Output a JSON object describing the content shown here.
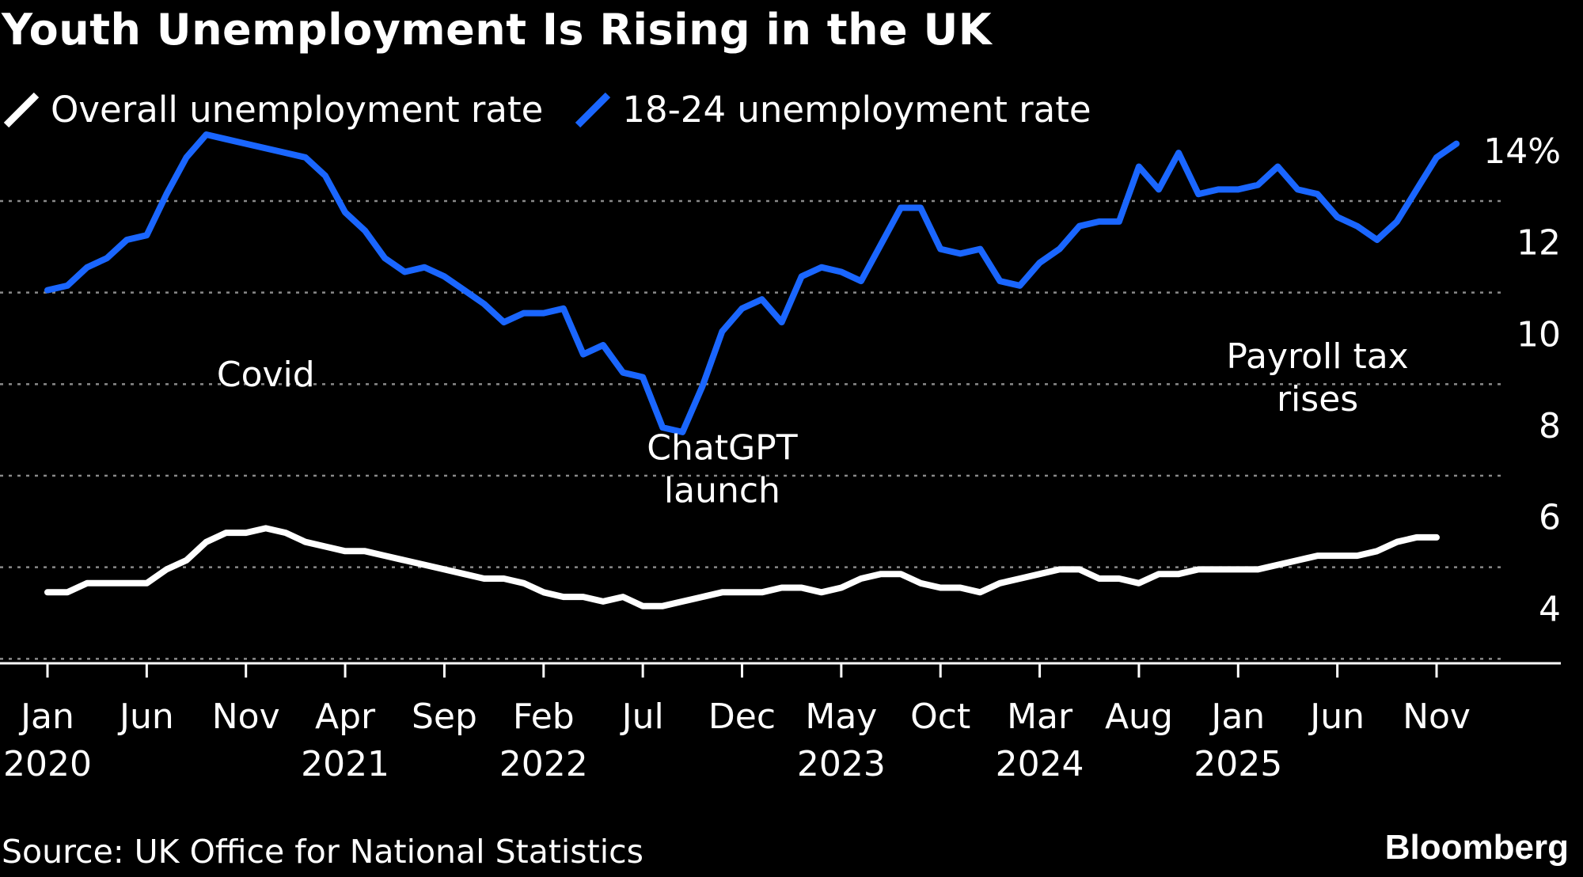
{
  "title": "Youth Unemployment Is Rising in the UK",
  "legend": [
    {
      "label": "Overall unemployment rate",
      "color": "#ffffff"
    },
    {
      "label": "18-24 unemployment rate",
      "color": "#1a66ff"
    }
  ],
  "source": "Source: UK Office for National Statistics",
  "brand": "Bloomberg",
  "chart_data": {
    "type": "line",
    "title": "Youth Unemployment Is Rising in the UK",
    "xlabel": "",
    "ylabel": "",
    "ylim": [
      2,
      14
    ],
    "yticks": [
      {
        "value": 14,
        "label": "14%"
      },
      {
        "value": 12,
        "label": "12"
      },
      {
        "value": 10,
        "label": "10"
      },
      {
        "value": 8,
        "label": "8"
      },
      {
        "value": 6,
        "label": "6"
      },
      {
        "value": 4,
        "label": "4"
      }
    ],
    "grid": "horizontal dotted",
    "legend_position": "top-left",
    "xticks": [
      {
        "label": "Jan",
        "year": "2020",
        "date": "2020-01"
      },
      {
        "label": "Jun",
        "year": "",
        "date": "2020-06"
      },
      {
        "label": "Nov",
        "year": "",
        "date": "2020-11"
      },
      {
        "label": "Apr",
        "year": "2021",
        "date": "2021-04"
      },
      {
        "label": "Sep",
        "year": "",
        "date": "2021-09"
      },
      {
        "label": "Feb",
        "year": "2022",
        "date": "2022-02"
      },
      {
        "label": "Jul",
        "year": "",
        "date": "2022-07"
      },
      {
        "label": "Dec",
        "year": "",
        "date": "2022-12"
      },
      {
        "label": "May",
        "year": "2023",
        "date": "2023-05"
      },
      {
        "label": "Oct",
        "year": "",
        "date": "2023-10"
      },
      {
        "label": "Mar",
        "year": "2024",
        "date": "2024-03"
      },
      {
        "label": "Aug",
        "year": "",
        "date": "2024-08"
      },
      {
        "label": "Jan",
        "year": "2025",
        "date": "2025-01"
      },
      {
        "label": "Jun",
        "year": "",
        "date": "2025-06"
      },
      {
        "label": "Nov",
        "year": "",
        "date": "2025-11"
      }
    ],
    "series": [
      {
        "name": "Overall unemployment rate",
        "color": "#ffffff",
        "points": [
          [
            "2020-01",
            4.0
          ],
          [
            "2020-02",
            4.0
          ],
          [
            "2020-03",
            4.2
          ],
          [
            "2020-04",
            4.2
          ],
          [
            "2020-05",
            4.2
          ],
          [
            "2020-06",
            4.2
          ],
          [
            "2020-07",
            4.5
          ],
          [
            "2020-08",
            4.7
          ],
          [
            "2020-09",
            5.1
          ],
          [
            "2020-10",
            5.3
          ],
          [
            "2020-11",
            5.3
          ],
          [
            "2020-12",
            5.4
          ],
          [
            "2021-01",
            5.3
          ],
          [
            "2021-02",
            5.1
          ],
          [
            "2021-03",
            5.0
          ],
          [
            "2021-04",
            4.9
          ],
          [
            "2021-05",
            4.9
          ],
          [
            "2021-06",
            4.8
          ],
          [
            "2021-07",
            4.7
          ],
          [
            "2021-08",
            4.6
          ],
          [
            "2021-09",
            4.5
          ],
          [
            "2021-10",
            4.4
          ],
          [
            "2021-11",
            4.3
          ],
          [
            "2021-12",
            4.3
          ],
          [
            "2022-01",
            4.2
          ],
          [
            "2022-02",
            4.0
          ],
          [
            "2022-03",
            3.9
          ],
          [
            "2022-04",
            3.9
          ],
          [
            "2022-05",
            3.8
          ],
          [
            "2022-06",
            3.9
          ],
          [
            "2022-07",
            3.7
          ],
          [
            "2022-08",
            3.7
          ],
          [
            "2022-09",
            3.8
          ],
          [
            "2022-10",
            3.9
          ],
          [
            "2022-11",
            4.0
          ],
          [
            "2022-12",
            4.0
          ],
          [
            "2023-01",
            4.0
          ],
          [
            "2023-02",
            4.1
          ],
          [
            "2023-03",
            4.1
          ],
          [
            "2023-04",
            4.0
          ],
          [
            "2023-05",
            4.1
          ],
          [
            "2023-06",
            4.3
          ],
          [
            "2023-07",
            4.4
          ],
          [
            "2023-08",
            4.4
          ],
          [
            "2023-09",
            4.2
          ],
          [
            "2023-10",
            4.1
          ],
          [
            "2023-11",
            4.1
          ],
          [
            "2023-12",
            4.0
          ],
          [
            "2024-01",
            4.2
          ],
          [
            "2024-02",
            4.3
          ],
          [
            "2024-03",
            4.4
          ],
          [
            "2024-04",
            4.5
          ],
          [
            "2024-05",
            4.5
          ],
          [
            "2024-06",
            4.3
          ],
          [
            "2024-07",
            4.3
          ],
          [
            "2024-08",
            4.2
          ],
          [
            "2024-09",
            4.4
          ],
          [
            "2024-10",
            4.4
          ],
          [
            "2024-11",
            4.5
          ],
          [
            "2024-12",
            4.5
          ],
          [
            "2025-01",
            4.5
          ],
          [
            "2025-02",
            4.5
          ],
          [
            "2025-03",
            4.6
          ],
          [
            "2025-04",
            4.7
          ],
          [
            "2025-05",
            4.8
          ],
          [
            "2025-06",
            4.8
          ],
          [
            "2025-07",
            4.8
          ],
          [
            "2025-08",
            4.9
          ],
          [
            "2025-09",
            5.1
          ],
          [
            "2025-10",
            5.2
          ],
          [
            "2025-11",
            5.2
          ]
        ]
      },
      {
        "name": "18-24 unemployment rate",
        "color": "#1a66ff",
        "points": [
          [
            "2020-01",
            10.6
          ],
          [
            "2020-02",
            10.7
          ],
          [
            "2020-03",
            11.1
          ],
          [
            "2020-04",
            11.3
          ],
          [
            "2020-05",
            11.7
          ],
          [
            "2020-06",
            11.8
          ],
          [
            "2020-07",
            12.7
          ],
          [
            "2020-08",
            13.5
          ],
          [
            "2020-09",
            14.0
          ],
          [
            "2020-10",
            13.9
          ],
          [
            "2020-11",
            13.8
          ],
          [
            "2020-12",
            13.7
          ],
          [
            "2021-01",
            13.6
          ],
          [
            "2021-02",
            13.5
          ],
          [
            "2021-03",
            13.1
          ],
          [
            "2021-04",
            12.3
          ],
          [
            "2021-05",
            11.9
          ],
          [
            "2021-06",
            11.3
          ],
          [
            "2021-07",
            11.0
          ],
          [
            "2021-08",
            11.1
          ],
          [
            "2021-09",
            10.9
          ],
          [
            "2021-10",
            10.6
          ],
          [
            "2021-11",
            10.3
          ],
          [
            "2021-12",
            9.9
          ],
          [
            "2022-01",
            10.1
          ],
          [
            "2022-02",
            10.1
          ],
          [
            "2022-03",
            10.2
          ],
          [
            "2022-04",
            9.2
          ],
          [
            "2022-05",
            9.4
          ],
          [
            "2022-06",
            8.8
          ],
          [
            "2022-07",
            8.7
          ],
          [
            "2022-08",
            7.6
          ],
          [
            "2022-09",
            7.5
          ],
          [
            "2022-10",
            8.5
          ],
          [
            "2022-11",
            9.7
          ],
          [
            "2022-12",
            10.2
          ],
          [
            "2023-01",
            10.4
          ],
          [
            "2023-02",
            9.9
          ],
          [
            "2023-03",
            10.9
          ],
          [
            "2023-04",
            11.1
          ],
          [
            "2023-05",
            11.0
          ],
          [
            "2023-06",
            10.8
          ],
          [
            "2023-07",
            11.6
          ],
          [
            "2023-08",
            12.4
          ],
          [
            "2023-09",
            12.4
          ],
          [
            "2023-10",
            11.5
          ],
          [
            "2023-11",
            11.4
          ],
          [
            "2023-12",
            11.5
          ],
          [
            "2024-01",
            10.8
          ],
          [
            "2024-02",
            10.7
          ],
          [
            "2024-03",
            11.2
          ],
          [
            "2024-04",
            11.5
          ],
          [
            "2024-05",
            12.0
          ],
          [
            "2024-06",
            12.1
          ],
          [
            "2024-07",
            12.1
          ],
          [
            "2024-08",
            13.3
          ],
          [
            "2024-09",
            12.8
          ],
          [
            "2024-10",
            13.6
          ],
          [
            "2024-11",
            12.7
          ],
          [
            "2024-12",
            12.8
          ],
          [
            "2025-01",
            12.8
          ],
          [
            "2025-02",
            12.9
          ],
          [
            "2025-03",
            13.3
          ],
          [
            "2025-04",
            12.8
          ],
          [
            "2025-05",
            12.7
          ],
          [
            "2025-06",
            12.2
          ],
          [
            "2025-07",
            12.0
          ],
          [
            "2025-08",
            11.7
          ],
          [
            "2025-09",
            12.1
          ],
          [
            "2025-10",
            12.8
          ],
          [
            "2025-11",
            13.5
          ],
          [
            "2025-12",
            13.8
          ]
        ]
      }
    ],
    "annotations": [
      {
        "lines": [
          "Covid"
        ],
        "date": "2020-12",
        "y": 8.5
      },
      {
        "lines": [
          "ChatGPT",
          "launch"
        ],
        "date": "2022-11",
        "y": 6.9
      },
      {
        "lines": [
          "Payroll tax",
          "rises"
        ],
        "date": "2025-05",
        "y": 8.9
      }
    ]
  }
}
